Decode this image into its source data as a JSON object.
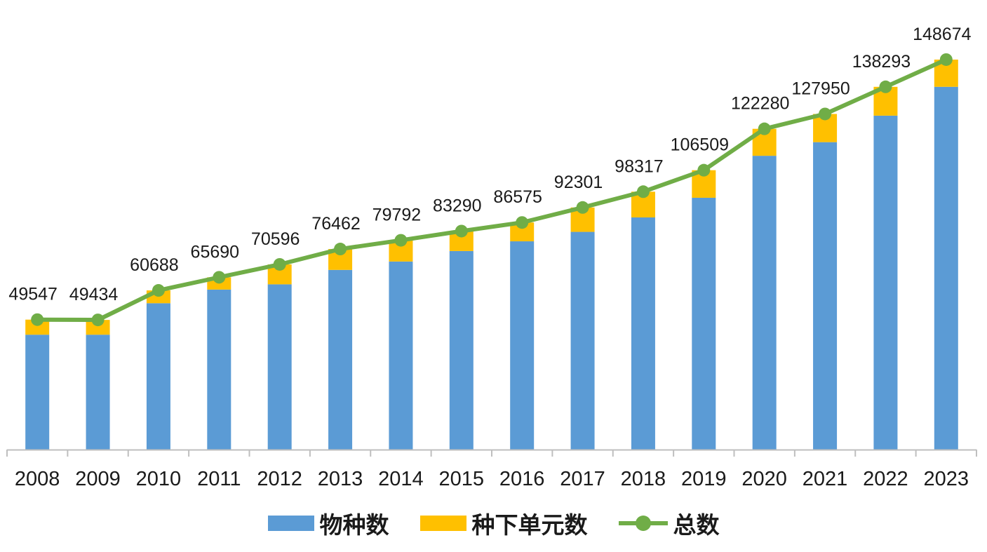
{
  "chart_data": {
    "type": "bar",
    "stacked": true,
    "categories": [
      "2008",
      "2009",
      "2010",
      "2011",
      "2012",
      "2013",
      "2014",
      "2015",
      "2016",
      "2017",
      "2018",
      "2019",
      "2020",
      "2021",
      "2022",
      "2023"
    ],
    "ylim": [
      0,
      160000
    ],
    "grid": false,
    "legend_position": "bottom",
    "series": [
      {
        "name": "物种数",
        "kind": "bar",
        "color": "#5b9bd5",
        "values": [
          43800,
          43800,
          55800,
          61000,
          63000,
          68500,
          71700,
          75700,
          79400,
          83000,
          88500,
          96000,
          112000,
          117200,
          127300,
          138300
        ]
      },
      {
        "name": "种下单元数",
        "kind": "bar",
        "color": "#ffc000",
        "values": [
          5747,
          5634,
          4888,
          4690,
          7596,
          7962,
          8092,
          7590,
          7175,
          9301,
          9817,
          10509,
          10280,
          10750,
          10993,
          10374
        ]
      },
      {
        "name": "总数",
        "kind": "line",
        "color": "#70ad47",
        "values": [
          49547,
          49434,
          60688,
          65690,
          70596,
          76462,
          79792,
          83290,
          86575,
          92301,
          98317,
          106509,
          122280,
          127950,
          138293,
          148674
        ]
      }
    ],
    "data_labels": [
      "49547",
      "49434",
      "60688",
      "65690",
      "70596",
      "76462",
      "79792",
      "83290",
      "86575",
      "92301",
      "98317",
      "106509",
      "122280",
      "127950",
      "138293",
      "148674"
    ]
  }
}
